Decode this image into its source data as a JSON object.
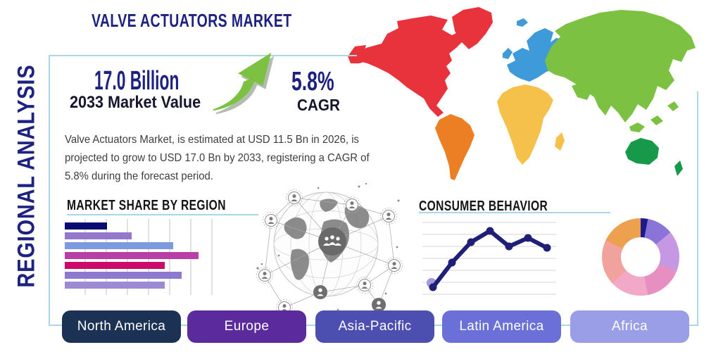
{
  "side_title": "REGIONAL ANALYSIS",
  "header": {
    "title": "VALVE ACTUATORS MARKET"
  },
  "stats": {
    "market_value": "17.0 Billion",
    "market_value_label": "2033 Market Value",
    "cagr_value": "5.8%",
    "cagr_label": "CAGR"
  },
  "description": "Valve Actuators Market, is estimated at USD 11.5 Bn in 2026, is\nprojected to grow to USD 17.0 Bn by 2033, registering a CAGR of\n5.8% during the forecast period.",
  "accent_colors": {
    "frame_blue": "#a9d7e8",
    "navy": "#1d2180",
    "arrow_green": "#7cc142",
    "arrow_shadow": "#8b9a85"
  },
  "chart_data": [
    {
      "type": "bar",
      "title": "MARKET SHARE BY REGION",
      "orientation": "horizontal",
      "values": [
        60,
        95,
        154,
        190,
        142,
        166,
        142
      ],
      "value_note": "relative bar lengths, no axis labels shown",
      "bar_colors": [
        "#0a0a73",
        "#9478cc",
        "#7e9ade",
        "#b83fa6",
        "#cc0a6a",
        "#8d7ace",
        "#9c8bd4"
      ],
      "grid": "vertical",
      "legend": false
    },
    {
      "type": "line",
      "title": "CONSUMER BEHAVIOR",
      "x": [
        1,
        2,
        3,
        4,
        5,
        6,
        7
      ],
      "values": [
        10,
        45,
        74,
        90,
        68,
        80,
        66
      ],
      "ylim": [
        0,
        100
      ],
      "line_color": "#1f1f78",
      "first_point_halo_color": "#a598dc",
      "grid": "horizontal",
      "legend": false
    },
    {
      "type": "pie",
      "donut": true,
      "title": "",
      "values": [
        3,
        11,
        17,
        16,
        16,
        19,
        18
      ],
      "slice_colors": [
        "#1b1b8e",
        "#8a74d8",
        "#c698e4",
        "#e78fc0",
        "#f2a9c7",
        "#f2a29c",
        "#eda04e"
      ],
      "legend": false
    }
  ],
  "map_regions": [
    {
      "name": "North America",
      "color": "#e8323c"
    },
    {
      "name": "South America",
      "color": "#ec7f24"
    },
    {
      "name": "Europe",
      "color": "#3f9ad9"
    },
    {
      "name": "Africa",
      "color": "#f6c14b"
    },
    {
      "name": "Asia",
      "color": "#7cc141"
    },
    {
      "name": "Australia",
      "color": "#17994a"
    }
  ],
  "region_buttons": [
    {
      "label": "North America",
      "color": "#1c3254"
    },
    {
      "label": "Europe",
      "color": "#5b2b9e"
    },
    {
      "label": "Asia-Pacific",
      "color": "#4c4eb0"
    },
    {
      "label": "Latin America",
      "color": "#6b70d8"
    },
    {
      "label": "Africa",
      "color": "#9a9ee6"
    }
  ]
}
